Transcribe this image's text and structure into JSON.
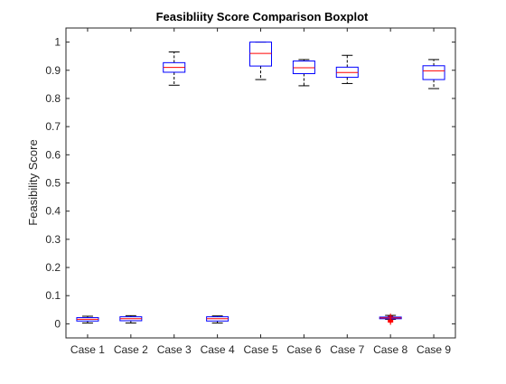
{
  "chart_data": {
    "type": "boxplot",
    "title": "Feasibliity Score Comparison Boxplot",
    "xlabel": "",
    "ylabel": "Feasibility Score",
    "ylim": [
      -0.05,
      1.05
    ],
    "yticks": [
      0,
      0.1,
      0.2,
      0.3,
      0.4,
      0.5,
      0.6,
      0.7,
      0.8,
      0.9,
      1
    ],
    "ytick_labels": [
      "0",
      "0.1",
      "0.2",
      "0.3",
      "0.4",
      "0.5",
      "0.6",
      "0.7",
      "0.8",
      "0.9",
      "1"
    ],
    "categories": [
      "Case 1",
      "Case 2",
      "Case 3",
      "Case 4",
      "Case 5",
      "Case 6",
      "Case 7",
      "Case 8",
      "Case 9"
    ],
    "boxes": [
      {
        "category": "Case 1",
        "whisker_low": 0.003,
        "q1": 0.01,
        "median": 0.016,
        "q3": 0.022,
        "whisker_high": 0.027,
        "outliers": []
      },
      {
        "category": "Case 2",
        "whisker_low": 0.003,
        "q1": 0.011,
        "median": 0.018,
        "q3": 0.025,
        "whisker_high": 0.029,
        "outliers": []
      },
      {
        "category": "Case 3",
        "whisker_low": 0.847,
        "q1": 0.893,
        "median": 0.91,
        "q3": 0.927,
        "whisker_high": 0.965,
        "outliers": []
      },
      {
        "category": "Case 4",
        "whisker_low": 0.003,
        "q1": 0.01,
        "median": 0.018,
        "q3": 0.025,
        "whisker_high": 0.028,
        "outliers": []
      },
      {
        "category": "Case 5",
        "whisker_low": 0.867,
        "q1": 0.915,
        "median": 0.96,
        "q3": 1.0,
        "whisker_high": 1.0,
        "outliers": []
      },
      {
        "category": "Case 6",
        "whisker_low": 0.845,
        "q1": 0.888,
        "median": 0.909,
        "q3": 0.933,
        "whisker_high": 0.938,
        "outliers": []
      },
      {
        "category": "Case 7",
        "whisker_low": 0.853,
        "q1": 0.875,
        "median": 0.892,
        "q3": 0.911,
        "whisker_high": 0.953,
        "outliers": []
      },
      {
        "category": "Case 8",
        "whisker_low": 0.016,
        "q1": 0.018,
        "median": 0.021,
        "q3": 0.024,
        "whisker_high": 0.03,
        "outliers": [
          0.006,
          0.009,
          0.012,
          0.014,
          0.027
        ]
      },
      {
        "category": "Case 9",
        "whisker_low": 0.835,
        "q1": 0.867,
        "median": 0.898,
        "q3": 0.916,
        "whisker_high": 0.938,
        "outliers": []
      }
    ],
    "colors": {
      "box": "#0000ff",
      "median": "#ff0000",
      "whisker": "#000000",
      "outlier": "#ff0000",
      "axis": "#262626"
    },
    "grid": false,
    "legend": "none"
  }
}
